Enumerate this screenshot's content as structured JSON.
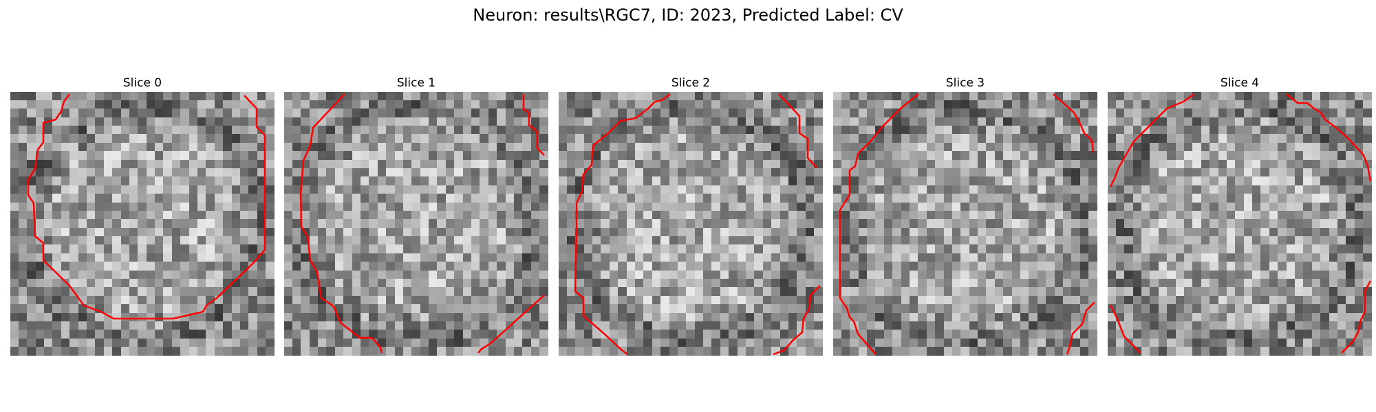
{
  "figure": {
    "title": "Neuron: results\\RGC7, ID: 2023, Predicted Label: CV",
    "contour_color": "#ff0000",
    "colormap": "gray",
    "image_grid": "31x31 grayscale noise patch",
    "slices": [
      {
        "title": "Slice 0"
      },
      {
        "title": "Slice 1"
      },
      {
        "title": "Slice 2"
      },
      {
        "title": "Slice 3"
      },
      {
        "title": "Slice 4"
      }
    ]
  }
}
